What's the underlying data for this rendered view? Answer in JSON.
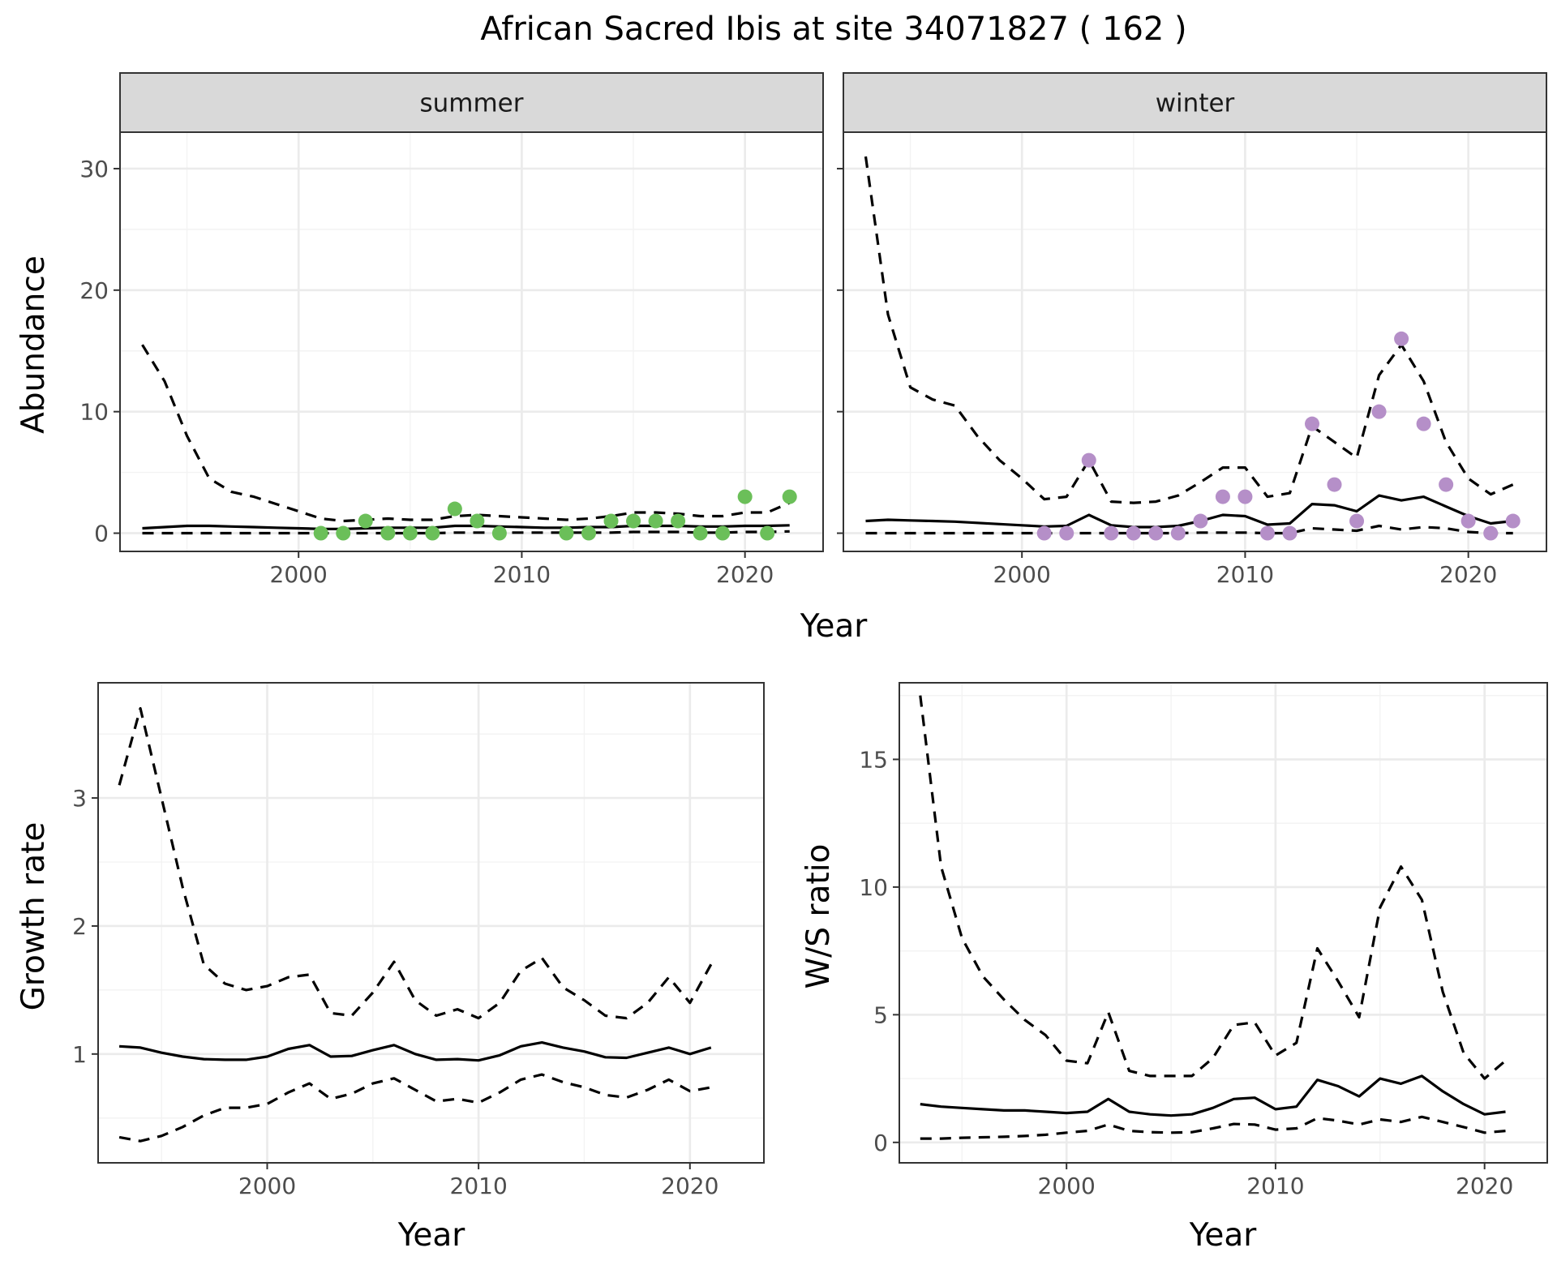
{
  "title": "African Sacred Ibis at site 34071827 ( 162 )",
  "colors": {
    "summer_points": "#6BBF59",
    "winter_points": "#B58FC8",
    "lines": "#000000"
  },
  "chart_data": [
    {
      "id": "abundance",
      "type": "line",
      "facets": [
        "summer",
        "winter"
      ],
      "xlabel": "Year",
      "ylabel": "Abundance",
      "xlim": [
        1992,
        2023.5
      ],
      "ylim": [
        -1.5,
        33
      ],
      "xticks": [
        2000,
        2010,
        2020
      ],
      "yticks": [
        0,
        10,
        20,
        30
      ],
      "panels": [
        {
          "facet": "summer",
          "point_color": "#6BBF59",
          "x": [
            1993,
            1994,
            1995,
            1996,
            1997,
            1998,
            1999,
            2000,
            2001,
            2002,
            2003,
            2004,
            2005,
            2006,
            2007,
            2008,
            2009,
            2010,
            2011,
            2012,
            2013,
            2014,
            2015,
            2016,
            2017,
            2018,
            2019,
            2020,
            2021,
            2022
          ],
          "mean": [
            0.4,
            0.5,
            0.6,
            0.6,
            0.55,
            0.5,
            0.45,
            0.4,
            0.35,
            0.35,
            0.4,
            0.45,
            0.45,
            0.45,
            0.6,
            0.6,
            0.55,
            0.5,
            0.45,
            0.45,
            0.5,
            0.5,
            0.6,
            0.6,
            0.6,
            0.55,
            0.55,
            0.6,
            0.6,
            0.65
          ],
          "upper": [
            15.5,
            12.5,
            8,
            4.5,
            3.4,
            3,
            2.4,
            1.8,
            1.2,
            1.0,
            1.1,
            1.2,
            1.1,
            1.1,
            1.4,
            1.5,
            1.4,
            1.3,
            1.2,
            1.1,
            1.2,
            1.4,
            1.7,
            1.7,
            1.6,
            1.4,
            1.4,
            1.7,
            1.7,
            2.5
          ],
          "lower": [
            0,
            0,
            0,
            0,
            0,
            0,
            0,
            0,
            0,
            0,
            0,
            0,
            0,
            0,
            0.05,
            0.05,
            0.05,
            0.05,
            0.05,
            0.05,
            0.05,
            0.05,
            0.1,
            0.1,
            0.1,
            0.05,
            0.05,
            0.1,
            0.1,
            0.15
          ],
          "observed": [
            [
              2001,
              0
            ],
            [
              2002,
              0
            ],
            [
              2003,
              1
            ],
            [
              2004,
              0
            ],
            [
              2005,
              0
            ],
            [
              2006,
              0
            ],
            [
              2007,
              2
            ],
            [
              2008,
              1
            ],
            [
              2009,
              0
            ],
            [
              2012,
              0
            ],
            [
              2013,
              0
            ],
            [
              2014,
              1
            ],
            [
              2015,
              1
            ],
            [
              2016,
              1
            ],
            [
              2017,
              1
            ],
            [
              2018,
              0
            ],
            [
              2019,
              0
            ],
            [
              2020,
              3
            ],
            [
              2021,
              0
            ],
            [
              2022,
              3
            ]
          ]
        },
        {
          "facet": "winter",
          "point_color": "#B58FC8",
          "x": [
            1993,
            1994,
            1995,
            1996,
            1997,
            1998,
            1999,
            2000,
            2001,
            2002,
            2003,
            2004,
            2005,
            2006,
            2007,
            2008,
            2009,
            2010,
            2011,
            2012,
            2013,
            2014,
            2015,
            2016,
            2017,
            2018,
            2019,
            2020,
            2021,
            2022
          ],
          "mean": [
            1.0,
            1.1,
            1.05,
            1.0,
            0.95,
            0.85,
            0.75,
            0.65,
            0.55,
            0.6,
            1.5,
            0.65,
            0.5,
            0.5,
            0.6,
            1.0,
            1.5,
            1.4,
            0.7,
            0.8,
            2.4,
            2.3,
            1.8,
            3.1,
            2.7,
            3.0,
            2.2,
            1.4,
            0.8,
            1.0
          ],
          "upper": [
            31,
            18,
            12,
            11,
            10.5,
            8,
            6,
            4.5,
            2.8,
            3.0,
            6,
            2.6,
            2.5,
            2.6,
            3.1,
            4.2,
            5.4,
            5.4,
            3.0,
            3.3,
            8.8,
            7.5,
            6.2,
            13,
            15.5,
            12.5,
            7.5,
            4.5,
            3.2,
            4.0
          ],
          "lower": [
            0,
            0,
            0,
            0,
            0,
            0,
            0,
            0,
            0,
            0,
            0,
            0,
            0,
            0,
            0,
            0.05,
            0.05,
            0.05,
            0,
            0,
            0.4,
            0.3,
            0.2,
            0.6,
            0.3,
            0.5,
            0.4,
            0.1,
            0,
            0
          ],
          "observed": [
            [
              2001,
              0
            ],
            [
              2002,
              0
            ],
            [
              2003,
              6
            ],
            [
              2004,
              0
            ],
            [
              2005,
              0
            ],
            [
              2006,
              0
            ],
            [
              2007,
              0
            ],
            [
              2008,
              1
            ],
            [
              2009,
              3
            ],
            [
              2010,
              3
            ],
            [
              2011,
              0
            ],
            [
              2012,
              0
            ],
            [
              2013,
              9
            ],
            [
              2014,
              4
            ],
            [
              2015,
              1
            ],
            [
              2016,
              10
            ],
            [
              2017,
              16
            ],
            [
              2018,
              9
            ],
            [
              2019,
              4
            ],
            [
              2020,
              1
            ],
            [
              2021,
              0
            ],
            [
              2022,
              1
            ]
          ]
        }
      ]
    },
    {
      "id": "growth",
      "type": "line",
      "xlabel": "Year",
      "ylabel": "Growth rate",
      "xlim": [
        1992,
        2023.5
      ],
      "ylim": [
        0.15,
        3.9
      ],
      "xticks": [
        2000,
        2010,
        2020
      ],
      "yticks": [
        1,
        2,
        3
      ],
      "x": [
        1993,
        1994,
        1995,
        1996,
        1997,
        1998,
        1999,
        2000,
        2001,
        2002,
        2003,
        2004,
        2005,
        2006,
        2007,
        2008,
        2009,
        2010,
        2011,
        2012,
        2013,
        2014,
        2015,
        2016,
        2017,
        2018,
        2019,
        2020,
        2021
      ],
      "mean": [
        1.06,
        1.05,
        1.01,
        0.98,
        0.96,
        0.955,
        0.955,
        0.98,
        1.04,
        1.07,
        0.98,
        0.985,
        1.03,
        1.07,
        1.0,
        0.955,
        0.96,
        0.95,
        0.99,
        1.06,
        1.09,
        1.05,
        1.02,
        0.975,
        0.97,
        1.01,
        1.05,
        1.0,
        1.05
      ],
      "upper": [
        3.1,
        3.7,
        3.0,
        2.3,
        1.7,
        1.55,
        1.5,
        1.53,
        1.6,
        1.62,
        1.32,
        1.3,
        1.48,
        1.72,
        1.42,
        1.3,
        1.35,
        1.28,
        1.4,
        1.65,
        1.75,
        1.52,
        1.42,
        1.3,
        1.28,
        1.4,
        1.6,
        1.4,
        1.7
      ],
      "lower": [
        0.35,
        0.32,
        0.36,
        0.43,
        0.52,
        0.58,
        0.58,
        0.61,
        0.7,
        0.77,
        0.65,
        0.69,
        0.77,
        0.81,
        0.72,
        0.63,
        0.65,
        0.62,
        0.7,
        0.8,
        0.84,
        0.78,
        0.74,
        0.68,
        0.66,
        0.72,
        0.8,
        0.71,
        0.74
      ]
    },
    {
      "id": "ratio",
      "type": "line",
      "xlabel": "Year",
      "ylabel": "W/S ratio",
      "xlim": [
        1992,
        2023
      ],
      "ylim": [
        -0.8,
        18
      ],
      "xticks": [
        2000,
        2010,
        2020
      ],
      "yticks": [
        0,
        5,
        10,
        15
      ],
      "x": [
        1993,
        1994,
        1995,
        1996,
        1997,
        1998,
        1999,
        2000,
        2001,
        2002,
        2003,
        2004,
        2005,
        2006,
        2007,
        2008,
        2009,
        2010,
        2011,
        2012,
        2013,
        2014,
        2015,
        2016,
        2017,
        2018,
        2019,
        2020,
        2021
      ],
      "mean": [
        1.5,
        1.4,
        1.35,
        1.3,
        1.25,
        1.25,
        1.2,
        1.15,
        1.2,
        1.7,
        1.2,
        1.1,
        1.05,
        1.1,
        1.35,
        1.7,
        1.75,
        1.3,
        1.4,
        2.45,
        2.2,
        1.8,
        2.5,
        2.3,
        2.6,
        2.0,
        1.5,
        1.1,
        1.2
      ],
      "upper": [
        17.5,
        10.8,
        8.0,
        6.5,
        5.6,
        4.8,
        4.2,
        3.2,
        3.1,
        5.1,
        2.8,
        2.6,
        2.6,
        2.6,
        3.3,
        4.6,
        4.7,
        3.4,
        3.9,
        7.6,
        6.3,
        4.9,
        9.2,
        10.8,
        9.5,
        5.9,
        3.5,
        2.5,
        3.2
      ],
      "lower": [
        0.15,
        0.15,
        0.18,
        0.2,
        0.22,
        0.25,
        0.3,
        0.38,
        0.45,
        0.7,
        0.45,
        0.4,
        0.38,
        0.4,
        0.55,
        0.72,
        0.7,
        0.5,
        0.55,
        0.95,
        0.85,
        0.7,
        0.9,
        0.8,
        1.0,
        0.8,
        0.6,
        0.38,
        0.45
      ]
    }
  ]
}
